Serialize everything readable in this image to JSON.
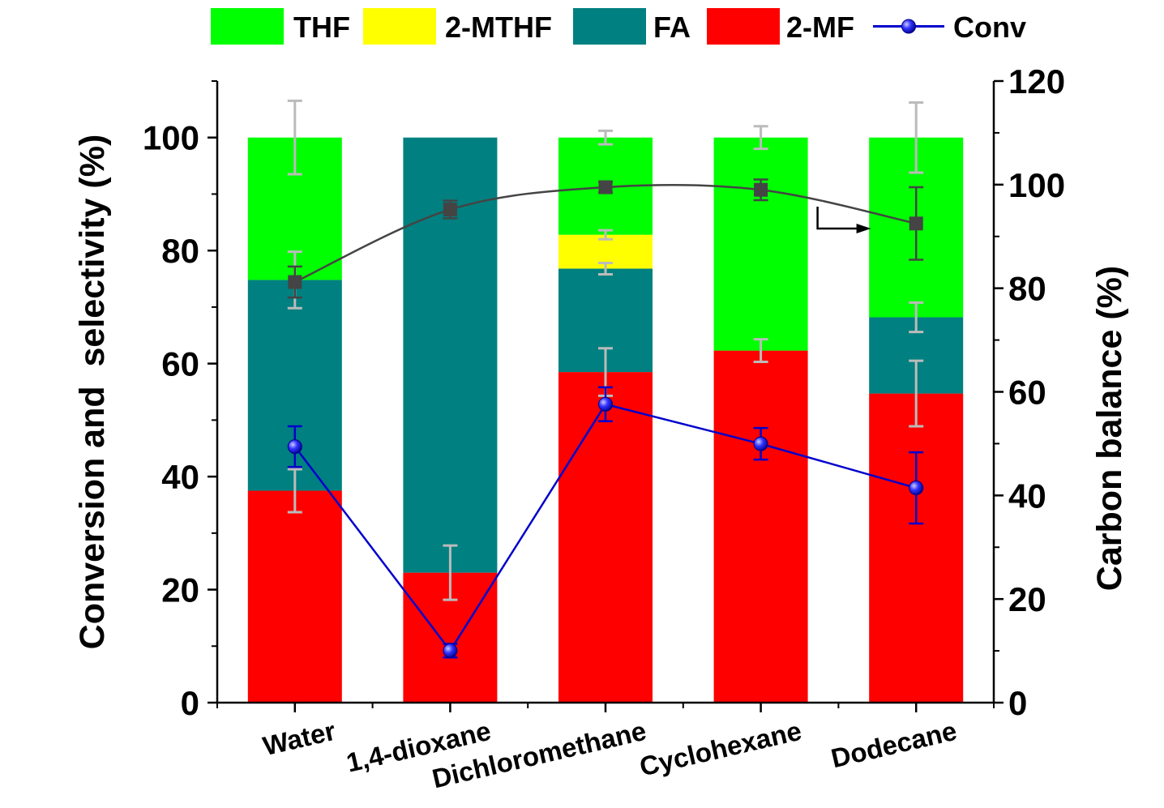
{
  "chart_data": {
    "type": "bar",
    "stacked": true,
    "categories": [
      "Water",
      "1,4-dioxane",
      "Dichloromethane",
      "Cyclohexane",
      "Dodecane"
    ],
    "series": [
      {
        "name": "2-MF",
        "color": "#ff0000",
        "values": [
          37.5,
          23.0,
          58.5,
          62.3,
          54.7
        ],
        "errors": [
          3.8,
          4.8,
          4.2,
          2.0,
          5.8
        ]
      },
      {
        "name": "FA",
        "color": "#008080",
        "values": [
          37.3,
          77.0,
          18.3,
          0,
          13.5
        ],
        "errors": [
          5.0,
          0,
          1.0,
          0,
          2.6
        ]
      },
      {
        "name": "2-MTHF",
        "color": "#ffff00",
        "values": [
          0,
          0,
          6.0,
          0,
          0
        ],
        "errors": [
          0,
          0,
          0.8,
          0,
          0
        ]
      },
      {
        "name": "THF",
        "color": "#00ff00",
        "values": [
          25.2,
          0,
          17.2,
          37.7,
          31.8
        ],
        "errors": [
          6.5,
          4.8,
          1.2,
          2.0,
          6.2
        ]
      }
    ],
    "line_series": [
      {
        "name": "Conv",
        "color": "#0000cc",
        "axis": "left",
        "marker": "sphere",
        "values": [
          45.3,
          9.2,
          52.8,
          45.8,
          38.0
        ],
        "errors": [
          3.6,
          1.2,
          3.0,
          2.8,
          6.3
        ]
      },
      {
        "name": "Carbon balance",
        "color": "#444444",
        "axis": "right",
        "marker": "square",
        "values": [
          81.2,
          95.2,
          99.5,
          99.0,
          92.5
        ],
        "errors": [
          3.0,
          1.7,
          1.0,
          2.0,
          7.0
        ]
      }
    ],
    "legend_order": [
      "THF",
      "2-MTHF",
      "FA",
      "2-MF",
      "Conv"
    ],
    "legend_position": "top",
    "ylabel": "Conversion and  selectivity (%)",
    "y2label": "Carbon balance (%)",
    "ylim": [
      0,
      110
    ],
    "y2lim": [
      0,
      120
    ],
    "yticks": [
      0,
      20,
      40,
      60,
      80,
      100
    ],
    "y2ticks": [
      0,
      20,
      40,
      60,
      80,
      100,
      120
    ],
    "grid": false,
    "arrow_annotation": "points from the carbon balance line to the right axis"
  }
}
